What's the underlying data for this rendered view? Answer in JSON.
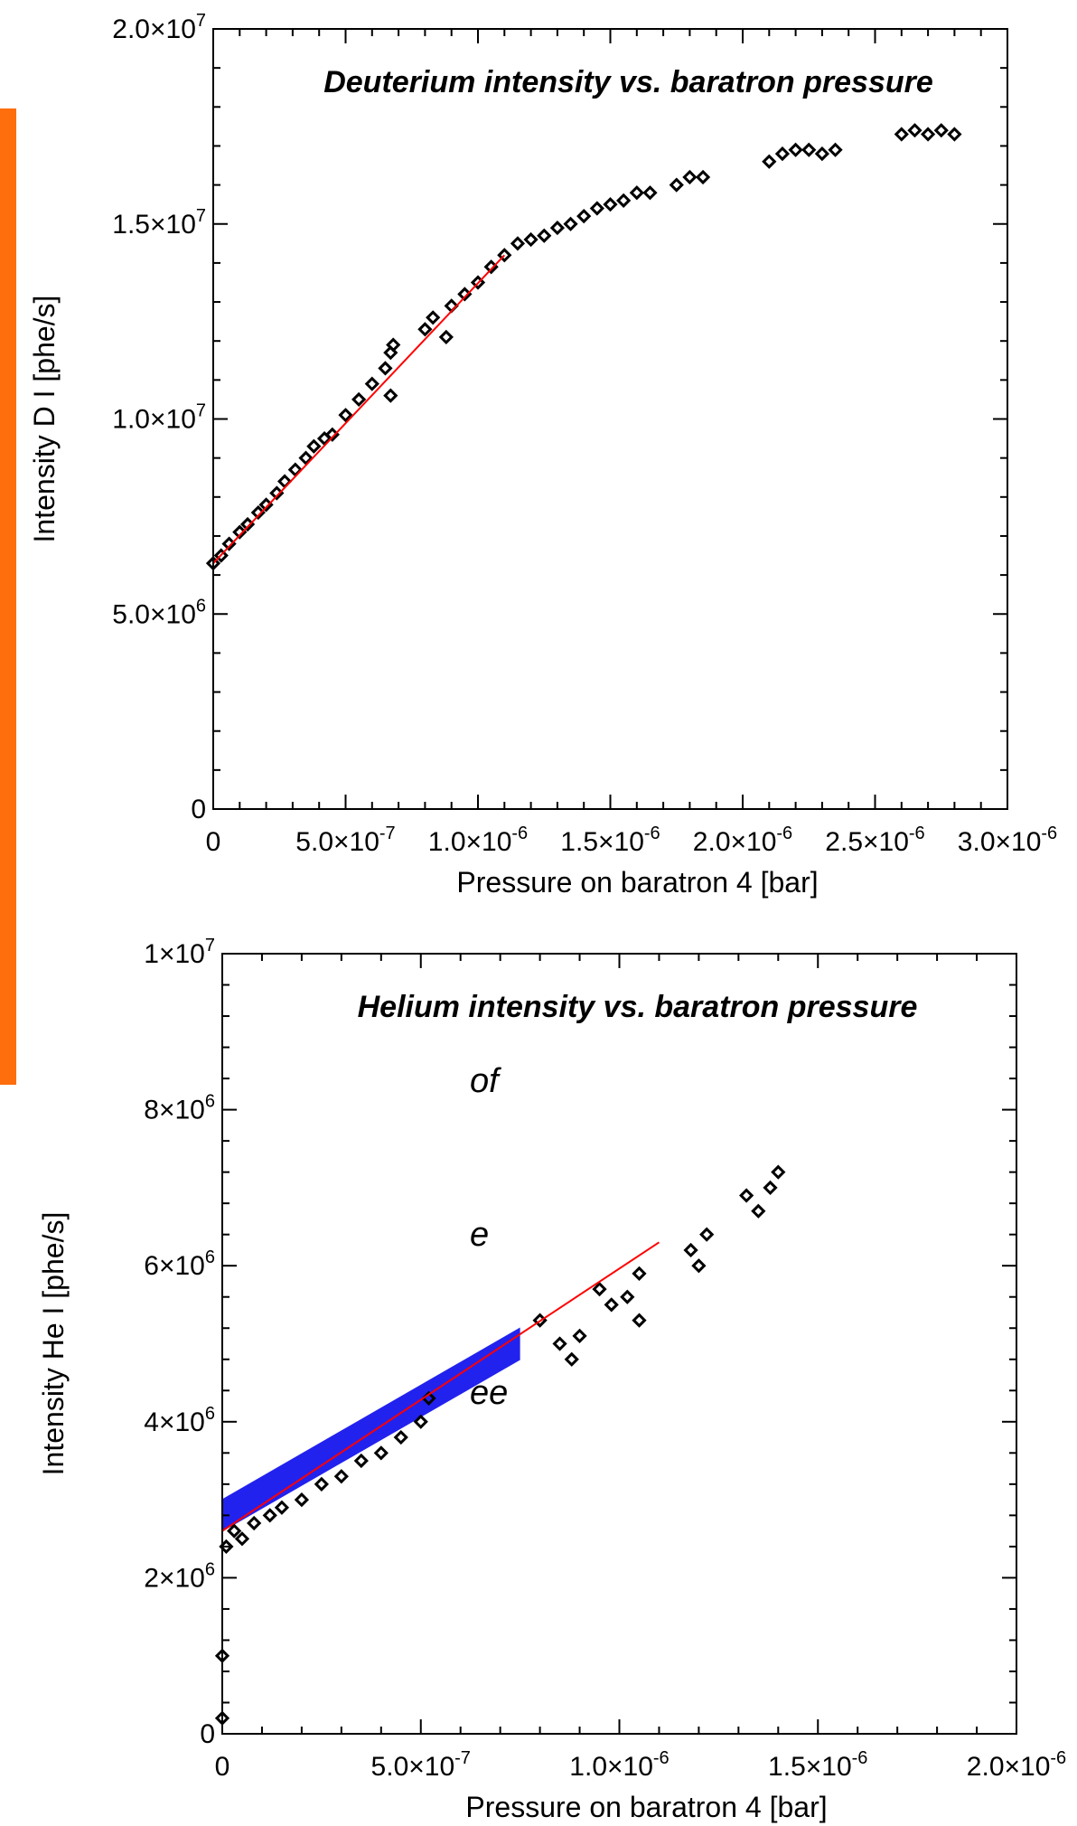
{
  "left_fragments": [
    "of",
    "e",
    "ee"
  ],
  "colors": {
    "accent": "#ff6e0c",
    "fit_line": "#ff0000",
    "highlight": "#2222ee",
    "markers": "#000000"
  },
  "chart_data": [
    {
      "type": "scatter",
      "title": "Deuterium intensity vs. baratron pressure",
      "xlabel": "Pressure on baratron 4 [bar]",
      "ylabel": "Intensity D I [phe/s]",
      "xlim": [
        0,
        3e-06
      ],
      "ylim": [
        0,
        20000000.0
      ],
      "xticks": [
        {
          "v": 0,
          "m": "0",
          "e": ""
        },
        {
          "v": 5e-07,
          "m": "5.0×10",
          "e": "-7"
        },
        {
          "v": 1e-06,
          "m": "1.0×10",
          "e": "-6"
        },
        {
          "v": 1.5e-06,
          "m": "1.5×10",
          "e": "-6"
        },
        {
          "v": 2e-06,
          "m": "2.0×10",
          "e": "-6"
        },
        {
          "v": 2.5e-06,
          "m": "2.5×10",
          "e": "-6"
        },
        {
          "v": 3e-06,
          "m": "3.0×10",
          "e": "-6"
        }
      ],
      "yticks": [
        {
          "v": 0,
          "m": "0",
          "e": ""
        },
        {
          "v": 5000000.0,
          "m": "5.0×10",
          "e": "6"
        },
        {
          "v": 10000000.0,
          "m": "1.0×10",
          "e": "7"
        },
        {
          "v": 15000000.0,
          "m": "1.5×10",
          "e": "7"
        },
        {
          "v": 20000000.0,
          "m": "2.0×10",
          "e": "7"
        }
      ],
      "series": [
        {
          "marker": "diamond",
          "points": [
            [
              0.0,
              6300000.0
            ],
            [
              3e-08,
              6500000.0
            ],
            [
              6e-08,
              6800000.0
            ],
            [
              1e-07,
              7100000.0
            ],
            [
              1.3e-07,
              7300000.0
            ],
            [
              1.7e-07,
              7600000.0
            ],
            [
              2e-07,
              7800000.0
            ],
            [
              2.4e-07,
              8100000.0
            ],
            [
              2.7e-07,
              8400000.0
            ],
            [
              3.1e-07,
              8700000.0
            ],
            [
              3.5e-07,
              9000000.0
            ],
            [
              3.8e-07,
              9300000.0
            ],
            [
              4.2e-07,
              9500000.0
            ],
            [
              4.5e-07,
              9600000.0
            ],
            [
              5e-07,
              10100000.0
            ],
            [
              5.5e-07,
              10500000.0
            ],
            [
              6e-07,
              10900000.0
            ],
            [
              6.5e-07,
              11300000.0
            ],
            [
              6.7e-07,
              10600000.0
            ],
            [
              6.7e-07,
              11700000.0
            ],
            [
              6.8e-07,
              11900000.0
            ],
            [
              8e-07,
              12300000.0
            ],
            [
              8.3e-07,
              12600000.0
            ],
            [
              8.8e-07,
              12100000.0
            ],
            [
              9e-07,
              12900000.0
            ],
            [
              9.5e-07,
              13200000.0
            ],
            [
              1e-06,
              13500000.0
            ],
            [
              1.05e-06,
              13900000.0
            ],
            [
              1.1e-06,
              14200000.0
            ],
            [
              1.15e-06,
              14500000.0
            ],
            [
              1.2e-06,
              14600000.0
            ],
            [
              1.25e-06,
              14700000.0
            ],
            [
              1.3e-06,
              14900000.0
            ],
            [
              1.35e-06,
              15000000.0
            ],
            [
              1.4e-06,
              15200000.0
            ],
            [
              1.45e-06,
              15400000.0
            ],
            [
              1.5e-06,
              15500000.0
            ],
            [
              1.55e-06,
              15600000.0
            ],
            [
              1.6e-06,
              15800000.0
            ],
            [
              1.65e-06,
              15800000.0
            ],
            [
              1.75e-06,
              16000000.0
            ],
            [
              1.8e-06,
              16200000.0
            ],
            [
              1.85e-06,
              16200000.0
            ],
            [
              2.1e-06,
              16600000.0
            ],
            [
              2.15e-06,
              16800000.0
            ],
            [
              2.2e-06,
              16900000.0
            ],
            [
              2.25e-06,
              16900000.0
            ],
            [
              2.3e-06,
              16800000.0
            ],
            [
              2.35e-06,
              16900000.0
            ],
            [
              2.6e-06,
              17300000.0
            ],
            [
              2.65e-06,
              17400000.0
            ],
            [
              2.7e-06,
              17300000.0
            ],
            [
              2.75e-06,
              17400000.0
            ],
            [
              2.8e-06,
              17300000.0
            ]
          ]
        }
      ],
      "fit_line": [
        [
          0.0,
          6300000.0
        ],
        [
          1.1e-06,
          14200000.0
        ]
      ]
    },
    {
      "type": "scatter",
      "title": "Helium intensity vs. baratron pressure",
      "xlabel": "Pressure on baratron 4 [bar]",
      "ylabel": "Intensity He I [phe/s]",
      "xlim": [
        0,
        2e-06
      ],
      "ylim": [
        0,
        10000000.0
      ],
      "xticks": [
        {
          "v": 0,
          "m": "0",
          "e": ""
        },
        {
          "v": 5e-07,
          "m": "5.0×10",
          "e": "-7"
        },
        {
          "v": 1e-06,
          "m": "1.0×10",
          "e": "-6"
        },
        {
          "v": 1.5e-06,
          "m": "1.5×10",
          "e": "-6"
        },
        {
          "v": 2e-06,
          "m": "2.0×10",
          "e": "-6"
        }
      ],
      "yticks": [
        {
          "v": 0,
          "m": "0",
          "e": ""
        },
        {
          "v": 2000000.0,
          "m": "2×10",
          "e": "6"
        },
        {
          "v": 4000000.0,
          "m": "4×10",
          "e": "6"
        },
        {
          "v": 6000000.0,
          "m": "6×10",
          "e": "6"
        },
        {
          "v": 8000000.0,
          "m": "8×10",
          "e": "6"
        },
        {
          "v": 10000000.0,
          "m": "1×10",
          "e": "7"
        }
      ],
      "highlight_band": [
        [
          0.0,
          2800000.0
        ],
        [
          7.5e-07,
          5000000.0
        ]
      ],
      "series": [
        {
          "marker": "diamond",
          "points": [
            [
              0.0,
              200000.0
            ],
            [
              0.0,
              1000000.0
            ],
            [
              1e-08,
              2400000.0
            ],
            [
              3e-08,
              2600000.0
            ],
            [
              5e-08,
              2500000.0
            ],
            [
              8e-08,
              2700000.0
            ],
            [
              1.2e-07,
              2800000.0
            ],
            [
              1.5e-07,
              2900000.0
            ],
            [
              2e-07,
              3000000.0
            ],
            [
              2.5e-07,
              3200000.0
            ],
            [
              3e-07,
              3300000.0
            ],
            [
              3.5e-07,
              3500000.0
            ],
            [
              4e-07,
              3600000.0
            ],
            [
              4.5e-07,
              3800000.0
            ],
            [
              5e-07,
              4000000.0
            ],
            [
              5.2e-07,
              4300000.0
            ],
            [
              8e-07,
              5300000.0
            ],
            [
              8.5e-07,
              5000000.0
            ],
            [
              8.8e-07,
              4800000.0
            ],
            [
              9e-07,
              5100000.0
            ],
            [
              9.5e-07,
              5700000.0
            ],
            [
              9.8e-07,
              5500000.0
            ],
            [
              1.02e-06,
              5600000.0
            ],
            [
              1.05e-06,
              5300000.0
            ],
            [
              1.05e-06,
              5900000.0
            ],
            [
              1.18e-06,
              6200000.0
            ],
            [
              1.2e-06,
              6000000.0
            ],
            [
              1.22e-06,
              6400000.0
            ],
            [
              1.32e-06,
              6900000.0
            ],
            [
              1.35e-06,
              6700000.0
            ],
            [
              1.38e-06,
              7000000.0
            ],
            [
              1.4e-06,
              7200000.0
            ]
          ]
        }
      ],
      "fit_line": [
        [
          0.0,
          2600000.0
        ],
        [
          1.1e-06,
          6300000.0
        ]
      ]
    }
  ]
}
